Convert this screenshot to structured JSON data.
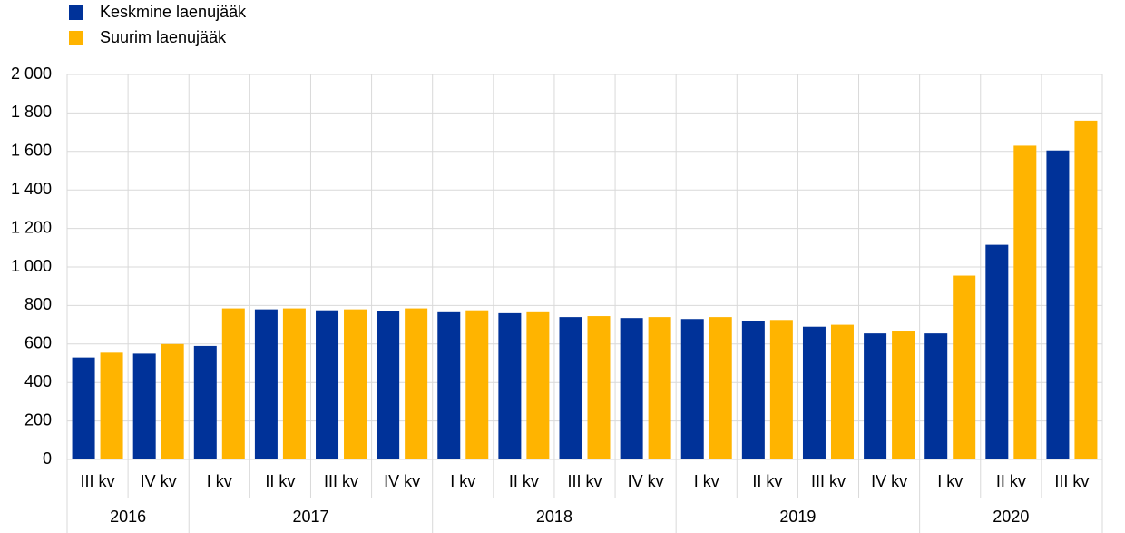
{
  "chart_data": {
    "type": "bar",
    "categories": [
      "III kv",
      "IV kv",
      "I kv",
      "II kv",
      "III kv",
      "IV kv",
      "I kv",
      "II kv",
      "III kv",
      "IV kv",
      "I kv",
      "II kv",
      "III kv",
      "IV kv",
      "I kv",
      "II kv",
      "III kv"
    ],
    "years": [
      "2016",
      null,
      "2017",
      null,
      null,
      null,
      "2018",
      null,
      null,
      null,
      "2019",
      null,
      null,
      null,
      "2020",
      null,
      null
    ],
    "series": [
      {
        "name": "Keskmine laenujääk",
        "color": "#003299",
        "values": [
          530,
          550,
          590,
          780,
          775,
          770,
          765,
          760,
          740,
          735,
          730,
          720,
          690,
          655,
          655,
          1115,
          1605
        ]
      },
      {
        "name": "Suurim laenujääk",
        "color": "#ffb400",
        "values": [
          555,
          600,
          785,
          785,
          780,
          785,
          775,
          765,
          745,
          740,
          740,
          725,
          700,
          665,
          955,
          1630,
          1760
        ]
      }
    ],
    "ylim": [
      0,
      2000
    ],
    "yticks": [
      0,
      200,
      400,
      600,
      800,
      {
        "value": 1000,
        "label": "1 000"
      },
      {
        "value": 1200,
        "label": "1 200"
      },
      {
        "value": 1400,
        "label": "1 400"
      },
      {
        "value": 1600,
        "label": "1 600"
      },
      {
        "value": 1800,
        "label": "1 800"
      },
      {
        "value": 2000,
        "label": "2 000"
      }
    ],
    "grid": true
  }
}
